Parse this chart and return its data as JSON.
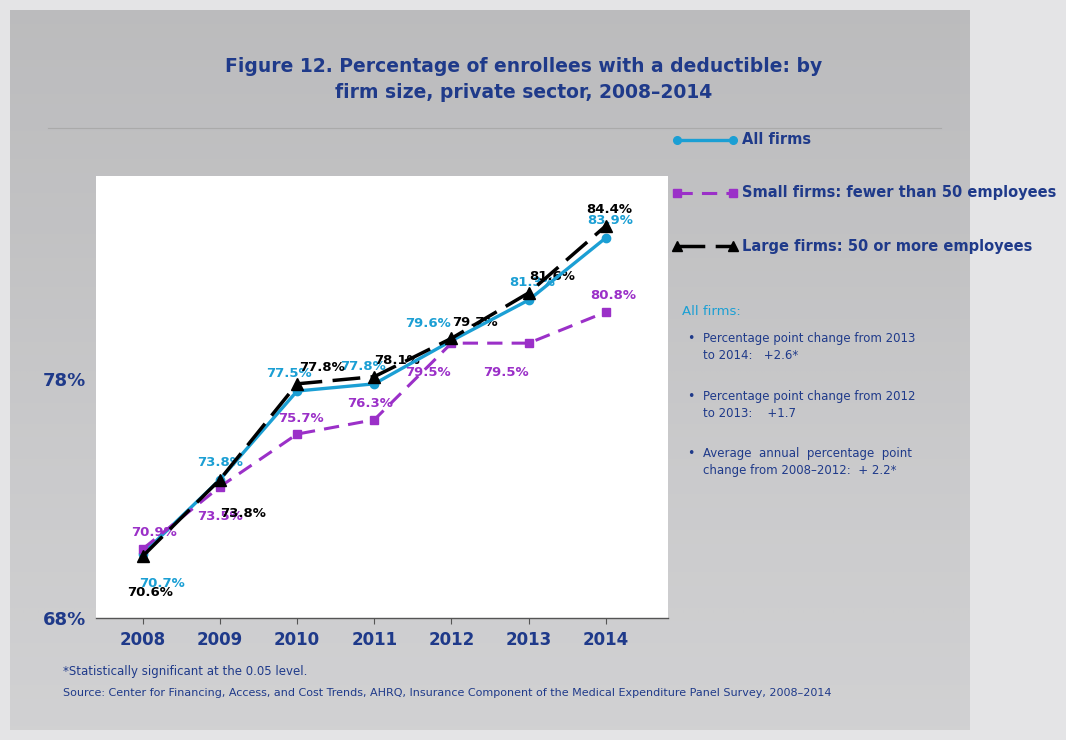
{
  "title_line1": "Figure 12. Percentage of enrollees with a deductible: by",
  "title_line2": "firm size, private sector, 2008–2014",
  "years": [
    2008,
    2009,
    2010,
    2011,
    2012,
    2013,
    2014
  ],
  "all_firms": [
    70.7,
    73.8,
    77.5,
    77.8,
    79.6,
    81.3,
    83.9
  ],
  "small_firms": [
    70.9,
    73.5,
    75.7,
    76.3,
    79.5,
    79.5,
    80.8
  ],
  "large_firms": [
    70.6,
    73.8,
    77.8,
    78.1,
    79.7,
    81.6,
    84.4
  ],
  "all_firms_color": "#1B9FD4",
  "small_firms_color": "#9B30C8",
  "large_firms_color": "#000000",
  "title_color": "#1F3A8A",
  "legend_text_color": "#1F3A8A",
  "annotation_color": "#1F3A8A",
  "footer_color": "#1F3A8A",
  "ylim_low": 68,
  "ylim_high": 86.5,
  "yticks": [
    68,
    78
  ],
  "ytick_labels": [
    "68%",
    "78%"
  ],
  "legend_all": "All firms",
  "legend_small": "Small firms: fewer than 50 employees",
  "legend_large": "Large firms: 50 or more employees",
  "note1": "*Statistically significant at the 0.05 level.",
  "note2": "Source: Center for Financing, Access, and Cost Trends, AHRQ, Insurance Component of the Medical Expenditure Panel Survey, 2008–2014",
  "annotation_box_title": "All firms:",
  "annotation_bullet1_l1": "Percentage point change from 2013",
  "annotation_bullet1_l2": "to 2014:   +2.6*",
  "annotation_bullet2_l1": "Percentage point change from 2012",
  "annotation_bullet2_l2": "to 2013:    +1.7",
  "annotation_bullet3_l1": "Average  annual  percentage  point",
  "annotation_bullet3_l2": "change from 2008–2012:  + 2.2*",
  "bg_top": "#DCDCDC",
  "bg_bottom": "#F0F0F0",
  "plot_bg": "#FFFFFF",
  "header_bg": "#E0E0E8"
}
